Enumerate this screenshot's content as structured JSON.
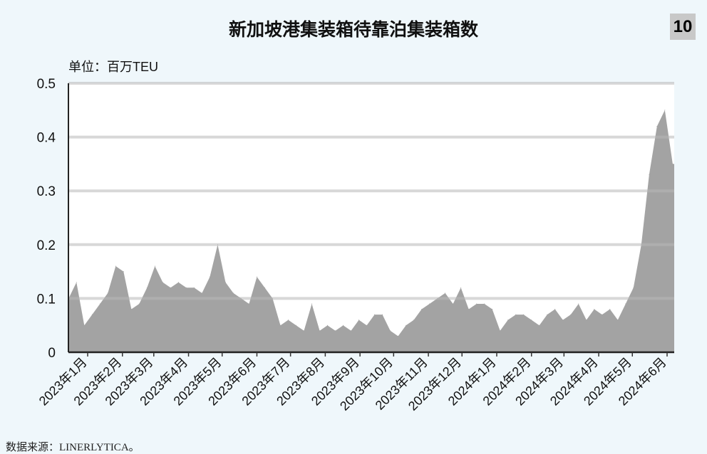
{
  "header": {
    "title": "新加坡港集装箱待靠泊集装箱数",
    "badge": "10"
  },
  "unit_label": "单位：百万TEU",
  "source": "数据来源：LINERLYTICA。",
  "colors": {
    "fill": "#a3a3a3",
    "grid": "#c8c8c8",
    "background": "#eff7fb",
    "plot": "#ffffff"
  },
  "chart_data": {
    "type": "area",
    "title": "新加坡港集装箱待靠泊集装箱数",
    "ylabel": "单位：百万TEU",
    "ylim": [
      0,
      0.5
    ],
    "yticks": [
      0,
      0.1,
      0.2,
      0.3,
      0.4,
      0.5
    ],
    "ytick_labels": [
      "0",
      "0.1",
      "0.2",
      "0.3",
      "0.4",
      "0.5"
    ],
    "grid": true,
    "xtick_dates": [
      "2023-01-01",
      "2023-02-01",
      "2023-03-01",
      "2023-04-01",
      "2023-05-01",
      "2023-06-01",
      "2023-07-01",
      "2023-08-01",
      "2023-09-01",
      "2023-10-01",
      "2023-11-01",
      "2023-12-01",
      "2024-01-01",
      "2024-02-01",
      "2024-03-01",
      "2024-04-01",
      "2024-05-01",
      "2024-06-01"
    ],
    "xtick_labels": [
      "2023年1月",
      "2023年2月",
      "2023年3月",
      "2023年4月",
      "2023年5月",
      "2023年6月",
      "2023年7月",
      "2023年8月",
      "2023年9月",
      "2023年10月",
      "2023年11月",
      "2023年12月",
      "2024年1月",
      "2024年2月",
      "2024年3月",
      "2024年4月",
      "2024年5月",
      "2024年6月"
    ],
    "x": [
      "2022-12-15",
      "2022-12-22",
      "2022-12-29",
      "2023-01-05",
      "2023-01-12",
      "2023-01-19",
      "2023-01-26",
      "2023-02-02",
      "2023-02-09",
      "2023-02-16",
      "2023-02-23",
      "2023-03-02",
      "2023-03-09",
      "2023-03-16",
      "2023-03-23",
      "2023-03-30",
      "2023-04-06",
      "2023-04-13",
      "2023-04-20",
      "2023-04-27",
      "2023-05-04",
      "2023-05-11",
      "2023-05-18",
      "2023-05-25",
      "2023-06-01",
      "2023-06-08",
      "2023-06-15",
      "2023-06-22",
      "2023-06-29",
      "2023-07-06",
      "2023-07-13",
      "2023-07-20",
      "2023-07-27",
      "2023-08-03",
      "2023-08-10",
      "2023-08-17",
      "2023-08-24",
      "2023-08-31",
      "2023-09-07",
      "2023-09-14",
      "2023-09-21",
      "2023-09-28",
      "2023-10-05",
      "2023-10-12",
      "2023-10-19",
      "2023-10-26",
      "2023-11-02",
      "2023-11-09",
      "2023-11-16",
      "2023-11-23",
      "2023-11-30",
      "2023-12-07",
      "2023-12-14",
      "2023-12-21",
      "2023-12-28",
      "2024-01-04",
      "2024-01-11",
      "2024-01-18",
      "2024-01-25",
      "2024-02-01",
      "2024-02-08",
      "2024-02-15",
      "2024-02-22",
      "2024-02-29",
      "2024-03-07",
      "2024-03-14",
      "2024-03-21",
      "2024-03-28",
      "2024-04-04",
      "2024-04-11",
      "2024-04-18",
      "2024-04-25",
      "2024-05-02",
      "2024-05-09",
      "2024-05-16",
      "2024-05-23",
      "2024-05-30",
      "2024-06-06"
    ],
    "values": [
      0.1,
      0.13,
      0.05,
      0.07,
      0.09,
      0.11,
      0.16,
      0.15,
      0.08,
      0.09,
      0.12,
      0.16,
      0.13,
      0.12,
      0.13,
      0.12,
      0.12,
      0.11,
      0.14,
      0.2,
      0.13,
      0.11,
      0.1,
      0.09,
      0.14,
      0.12,
      0.1,
      0.05,
      0.06,
      0.05,
      0.04,
      0.09,
      0.04,
      0.05,
      0.04,
      0.05,
      0.04,
      0.06,
      0.05,
      0.07,
      0.07,
      0.04,
      0.03,
      0.05,
      0.06,
      0.08,
      0.09,
      0.1,
      0.11,
      0.09,
      0.12,
      0.08,
      0.09,
      0.09,
      0.08,
      0.04,
      0.06,
      0.07,
      0.07,
      0.06,
      0.05,
      0.07,
      0.08,
      0.06,
      0.07,
      0.09,
      0.06,
      0.08,
      0.07,
      0.08,
      0.06,
      0.09,
      0.12,
      0.2,
      0.33,
      0.42,
      0.45,
      0.35
    ]
  }
}
